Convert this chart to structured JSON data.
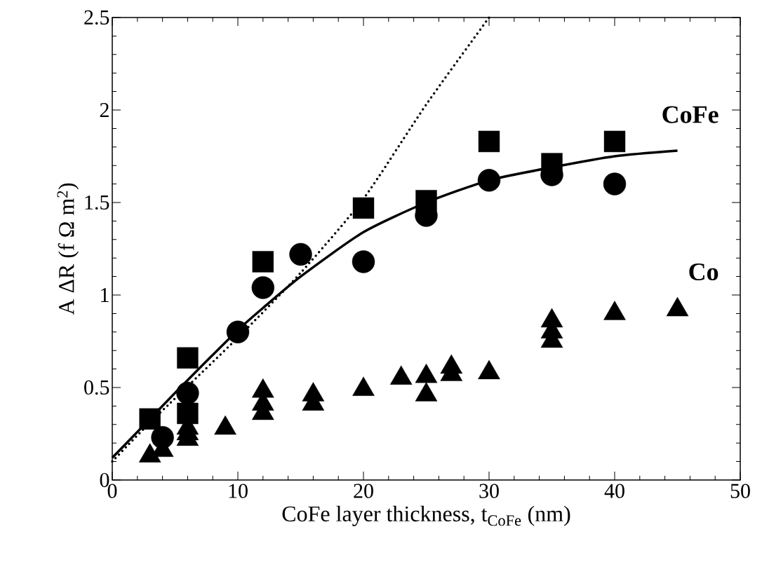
{
  "chart_data": {
    "type": "scatter",
    "xlabel": "CoFe layer thickness, t$_{CoFe}$ (nm)",
    "ylabel": "A ΔR (f Ω m$^{2}$)",
    "xlim": [
      0,
      50
    ],
    "ylim": [
      0,
      2.5
    ],
    "xticks": [
      0,
      10,
      20,
      30,
      40,
      50
    ],
    "yticks": [
      0,
      0.5,
      1,
      1.5,
      2,
      2.5
    ],
    "annotations": [
      "CoFe",
      "Co"
    ],
    "series": [
      {
        "type": "line",
        "marker": "none",
        "line_style": "dotted",
        "color": "#000000",
        "x": [
          0,
          3,
          10,
          15,
          20,
          25,
          30
        ],
        "values": [
          0.1,
          0.31,
          0.77,
          1.12,
          1.52,
          2.03,
          2.5
        ]
      },
      {
        "type": "line",
        "marker": "none",
        "line_style": "solid",
        "color": "#000000",
        "x": [
          0,
          3,
          6,
          10,
          12,
          15,
          20,
          25,
          30,
          35,
          40,
          45
        ],
        "values": [
          0.12,
          0.33,
          0.54,
          0.81,
          0.93,
          1.1,
          1.34,
          1.5,
          1.62,
          1.69,
          1.75,
          1.78
        ]
      },
      {
        "marker": "square",
        "color": "#000000",
        "x": [
          3,
          6,
          6,
          12,
          20,
          25,
          30,
          35,
          40
        ],
        "values": [
          0.33,
          0.66,
          0.36,
          1.18,
          1.47,
          1.51,
          1.83,
          1.71,
          1.83
        ]
      },
      {
        "marker": "circle",
        "color": "#000000",
        "x": [
          4,
          6,
          10,
          12,
          15,
          20,
          25,
          30,
          35,
          40
        ],
        "values": [
          0.23,
          0.47,
          0.8,
          1.04,
          1.22,
          1.18,
          1.43,
          1.62,
          1.65,
          1.6
        ]
      },
      {
        "marker": "triangle",
        "color": "#000000",
        "x": [
          3,
          4,
          6,
          6,
          6,
          9,
          12,
          12,
          12,
          16,
          16,
          20,
          23,
          25,
          25,
          27,
          27,
          30,
          35,
          35,
          35,
          40,
          45
        ],
        "values": [
          0.13,
          0.16,
          0.22,
          0.25,
          0.28,
          0.28,
          0.36,
          0.41,
          0.48,
          0.41,
          0.46,
          0.49,
          0.55,
          0.46,
          0.56,
          0.57,
          0.61,
          0.58,
          0.75,
          0.8,
          0.86,
          0.9,
          0.92
        ]
      }
    ]
  }
}
